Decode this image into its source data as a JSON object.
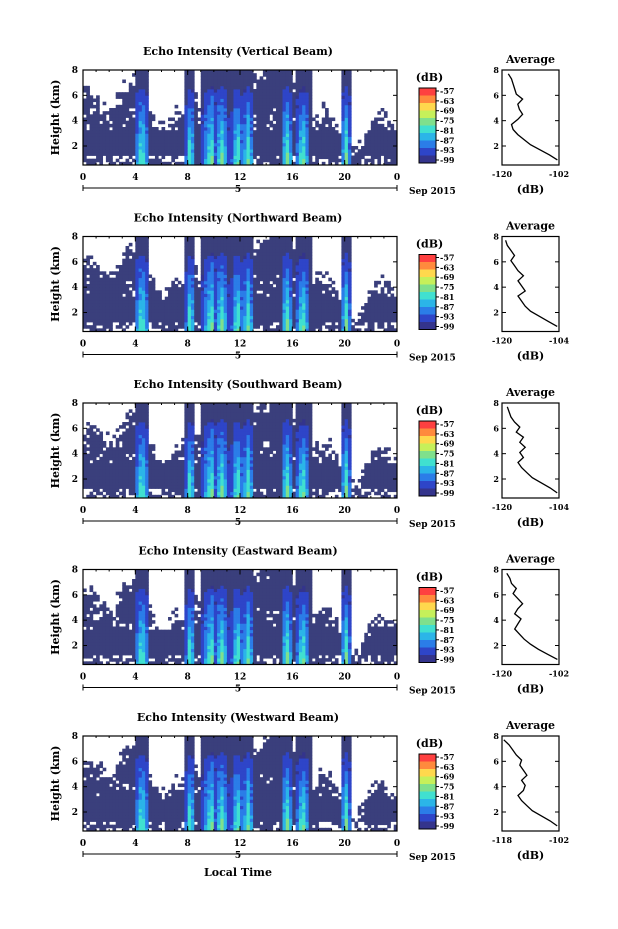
{
  "chart_data": [
    {
      "type": "heatmap",
      "title": "Echo Intensity (Vertical Beam)",
      "ylabel": "Height (km)",
      "yticks": [
        "2",
        "4",
        "6",
        "8"
      ],
      "xticks": [
        "0",
        "4",
        "8",
        "12",
        "16",
        "20",
        "0"
      ],
      "date_label": "5",
      "month_label": "Sep 2015",
      "xlabel": "",
      "colorbar": {
        "unit": "(dB)",
        "ticks": [
          "-57",
          "-63",
          "-69",
          "-75",
          "-81",
          "-87",
          "-93",
          "-99"
        ]
      },
      "profile": {
        "title": "Average",
        "xlabel": "(dB)",
        "xlim": [
          -120,
          -102
        ],
        "xticks": [
          "-120",
          "-102"
        ],
        "yticks": [
          "2",
          "4",
          "6",
          "8"
        ],
        "heights": [
          0.9,
          1.3,
          1.7,
          2.1,
          2.5,
          2.9,
          3.3,
          3.7,
          4.1,
          4.5,
          4.9,
          5.3,
          5.7,
          6.1,
          6.5,
          6.9,
          7.3,
          7.7
        ],
        "values": [
          -102.5,
          -105,
          -108,
          -111,
          -113,
          -115,
          -116.5,
          -117,
          -115,
          -113.5,
          -114.5,
          -115,
          -113.5,
          -115.5,
          -116,
          -116.5,
          -117,
          -118
        ]
      }
    },
    {
      "type": "heatmap",
      "title": "Echo Intensity (Northward Beam)",
      "ylabel": "Height (km)",
      "yticks": [
        "2",
        "4",
        "6",
        "8"
      ],
      "xticks": [
        "0",
        "4",
        "8",
        "12",
        "16",
        "20",
        "0"
      ],
      "date_label": "5",
      "month_label": "Sep 2015",
      "xlabel": "",
      "colorbar": {
        "unit": "(dB)",
        "ticks": [
          "-57",
          "-63",
          "-69",
          "-75",
          "-81",
          "-87",
          "-93",
          "-99"
        ]
      },
      "profile": {
        "title": "Average",
        "xlabel": "(dB)",
        "xlim": [
          -120,
          -104
        ],
        "xticks": [
          "-120",
          "-104"
        ],
        "yticks": [
          "2",
          "4",
          "6",
          "8"
        ],
        "heights": [
          0.9,
          1.3,
          1.7,
          2.1,
          2.5,
          2.9,
          3.3,
          3.7,
          4.1,
          4.5,
          4.9,
          5.3,
          5.7,
          6.1,
          6.5,
          6.9,
          7.3,
          7.7
        ],
        "values": [
          -104.5,
          -107,
          -109.5,
          -112,
          -113.5,
          -114.5,
          -115.5,
          -113.5,
          -114.5,
          -115.5,
          -114,
          -115.5,
          -116.5,
          -117.5,
          -116.5,
          -117.5,
          -118.5,
          -119
        ]
      }
    },
    {
      "type": "heatmap",
      "title": "Echo Intensity (Southward Beam)",
      "ylabel": "Height (km)",
      "yticks": [
        "2",
        "4",
        "6",
        "8"
      ],
      "xticks": [
        "0",
        "4",
        "8",
        "12",
        "16",
        "20",
        "0"
      ],
      "date_label": "5",
      "month_label": "Sep 2015",
      "xlabel": "",
      "colorbar": {
        "unit": "(dB)",
        "ticks": [
          "-57",
          "-63",
          "-69",
          "-75",
          "-81",
          "-87",
          "-93",
          "-99"
        ]
      },
      "profile": {
        "title": "Average",
        "xlabel": "(dB)",
        "xlim": [
          -120,
          -104
        ],
        "xticks": [
          "-120",
          "-104"
        ],
        "yticks": [
          "2",
          "4",
          "6",
          "8"
        ],
        "heights": [
          0.9,
          1.3,
          1.7,
          2.1,
          2.5,
          2.9,
          3.3,
          3.7,
          4.1,
          4.5,
          4.9,
          5.3,
          5.7,
          6.1,
          6.5,
          6.9,
          7.3,
          7.7
        ],
        "values": [
          -104.5,
          -106.5,
          -109,
          -111.5,
          -113,
          -114.5,
          -115.5,
          -114,
          -115,
          -113.5,
          -115,
          -114,
          -116,
          -115,
          -116.5,
          -117.5,
          -118,
          -118.5
        ]
      }
    },
    {
      "type": "heatmap",
      "title": "Echo Intensity (Eastward Beam)",
      "ylabel": "Height (km)",
      "yticks": [
        "2",
        "4",
        "6",
        "8"
      ],
      "xticks": [
        "0",
        "4",
        "8",
        "12",
        "16",
        "20",
        "0"
      ],
      "date_label": "5",
      "month_label": "Sep 2015",
      "xlabel": "",
      "colorbar": {
        "unit": "(dB)",
        "ticks": [
          "-57",
          "-63",
          "-69",
          "-75",
          "-81",
          "-87",
          "-93",
          "-99"
        ]
      },
      "profile": {
        "title": "Average",
        "xlabel": "(dB)",
        "xlim": [
          -120,
          -102
        ],
        "xticks": [
          "-120",
          "-102"
        ],
        "yticks": [
          "2",
          "4",
          "6",
          "8"
        ],
        "heights": [
          0.9,
          1.3,
          1.7,
          2.1,
          2.5,
          2.9,
          3.3,
          3.7,
          4.1,
          4.5,
          4.9,
          5.3,
          5.7,
          6.1,
          6.5,
          6.9,
          7.3,
          7.7
        ],
        "values": [
          -102.5,
          -105.5,
          -108.5,
          -111,
          -113,
          -114.5,
          -116,
          -115,
          -114,
          -116,
          -115,
          -113.5,
          -115,
          -116.5,
          -115.5,
          -117,
          -117.5,
          -118.5
        ]
      }
    },
    {
      "type": "heatmap",
      "title": "Echo Intensity (Westward Beam)",
      "ylabel": "Height (km)",
      "yticks": [
        "2",
        "4",
        "6",
        "8"
      ],
      "xticks": [
        "0",
        "4",
        "8",
        "12",
        "16",
        "20",
        "0"
      ],
      "date_label": "5",
      "month_label": "Sep 2015",
      "xlabel": "Local Time",
      "colorbar": {
        "unit": "(dB)",
        "ticks": [
          "-57",
          "-63",
          "-69",
          "-75",
          "-81",
          "-87",
          "-93",
          "-99"
        ]
      },
      "profile": {
        "title": "Average",
        "xlabel": "(dB)",
        "xlim": [
          -118,
          -102
        ],
        "xticks": [
          "-118",
          "-102"
        ],
        "yticks": [
          "2",
          "4",
          "6",
          "8"
        ],
        "heights": [
          0.9,
          1.3,
          1.7,
          2.1,
          2.5,
          2.9,
          3.3,
          3.7,
          4.1,
          4.5,
          4.9,
          5.3,
          5.7,
          6.1,
          6.5,
          6.9,
          7.3,
          7.7
        ],
        "values": [
          -102.5,
          -104.5,
          -107,
          -109.5,
          -111,
          -112.5,
          -113.5,
          -112,
          -111.5,
          -112.5,
          -111,
          -112,
          -113,
          -112.5,
          -114,
          -115,
          -116,
          -117.5
        ]
      }
    }
  ],
  "colors": {
    "scale": [
      "#fe4040",
      "#ff8a3d",
      "#ffd84d",
      "#c6f05a",
      "#7fe08c",
      "#40e0d0",
      "#2bb5e8",
      "#2b7de8",
      "#2e45c8",
      "#34348c"
    ],
    "background": "#3a3f7c"
  }
}
